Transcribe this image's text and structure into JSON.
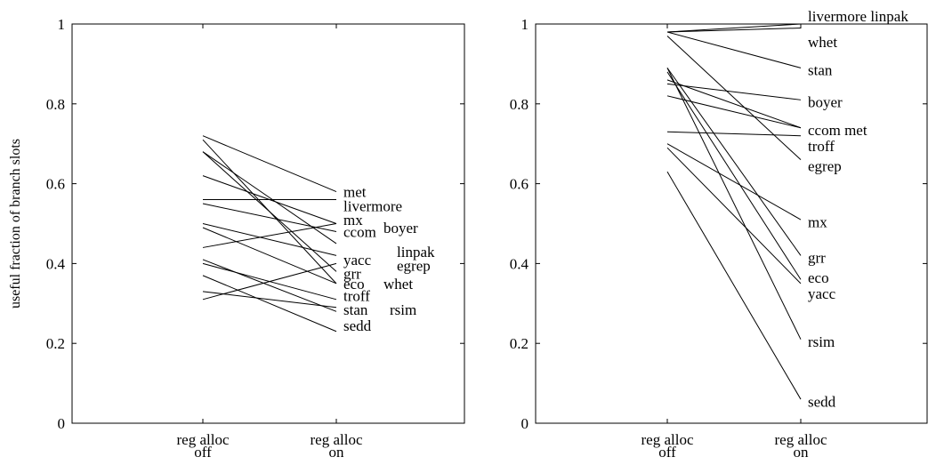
{
  "chart_data": [
    {
      "type": "line",
      "ylabel": "useful fraction of branch slots",
      "xlabel": "",
      "title": "",
      "categories": [
        "reg alloc off",
        "reg alloc on"
      ],
      "category_lines": [
        [
          "reg alloc",
          "off"
        ],
        [
          "reg alloc",
          "on"
        ]
      ],
      "ylim": [
        0,
        1
      ],
      "yticks": [
        "0",
        "0.2",
        "0.4",
        "0.6",
        "0.8",
        "1"
      ],
      "grid": false,
      "series": [
        {
          "name": "met",
          "values": [
            0.72,
            0.58
          ]
        },
        {
          "name": "livermore",
          "values": [
            0.56,
            0.56
          ]
        },
        {
          "name": "mx",
          "values": [
            0.62,
            0.5
          ]
        },
        {
          "name": "ccom",
          "values": [
            0.55,
            0.48
          ]
        },
        {
          "name": "boyer",
          "values": [
            0.44,
            0.5
          ]
        },
        {
          "name": "linpak",
          "values": [
            0.68,
            0.45
          ]
        },
        {
          "name": "yacc",
          "values": [
            0.5,
            0.42
          ]
        },
        {
          "name": "egrep",
          "values": [
            0.31,
            0.4
          ]
        },
        {
          "name": "grr",
          "values": [
            0.68,
            0.38
          ]
        },
        {
          "name": "eco",
          "values": [
            0.49,
            0.35
          ]
        },
        {
          "name": "whet",
          "values": [
            0.71,
            0.35
          ]
        },
        {
          "name": "troff",
          "values": [
            0.4,
            0.31
          ]
        },
        {
          "name": "rsim",
          "values": [
            0.33,
            0.29
          ]
        },
        {
          "name": "stan",
          "values": [
            0.41,
            0.28
          ]
        },
        {
          "name": "sedd",
          "values": [
            0.37,
            0.23
          ]
        }
      ],
      "label_values": {
        "met": 0.58,
        "livermore": 0.545,
        "mx": 0.51,
        "ccom": 0.48,
        "boyer": 0.49,
        "linpak": 0.43,
        "yacc": 0.41,
        "egrep": 0.395,
        "grr": 0.375,
        "eco": 0.35,
        "whet": 0.35,
        "troff": 0.32,
        "rsim": 0.285,
        "stan": 0.285,
        "sedd": 0.245
      }
    },
    {
      "type": "line",
      "ylabel": "",
      "xlabel": "",
      "title": "",
      "categories": [
        "reg alloc off",
        "reg alloc on"
      ],
      "category_lines": [
        [
          "reg alloc",
          "off"
        ],
        [
          "reg alloc",
          "on"
        ]
      ],
      "ylim": [
        0,
        1
      ],
      "yticks": [
        "0",
        "0.2",
        "0.4",
        "0.6",
        "0.8",
        "1"
      ],
      "grid": false,
      "series": [
        {
          "name": "livermore",
          "values": [
            0.98,
            1.0
          ]
        },
        {
          "name": "linpak",
          "values": [
            1.0,
            1.0
          ]
        },
        {
          "name": "whet",
          "values": [
            0.98,
            0.99
          ]
        },
        {
          "name": "stan",
          "values": [
            0.98,
            0.89
          ]
        },
        {
          "name": "boyer",
          "values": [
            0.85,
            0.81
          ]
        },
        {
          "name": "ccom",
          "values": [
            0.86,
            0.74
          ]
        },
        {
          "name": "met",
          "values": [
            0.82,
            0.74
          ]
        },
        {
          "name": "troff",
          "values": [
            0.73,
            0.72
          ]
        },
        {
          "name": "egrep",
          "values": [
            0.97,
            0.66
          ]
        },
        {
          "name": "mx",
          "values": [
            0.7,
            0.51
          ]
        },
        {
          "name": "grr",
          "values": [
            0.89,
            0.42
          ]
        },
        {
          "name": "eco",
          "values": [
            0.88,
            0.36
          ]
        },
        {
          "name": "yacc",
          "values": [
            0.69,
            0.35
          ]
        },
        {
          "name": "rsim",
          "values": [
            0.89,
            0.21
          ]
        },
        {
          "name": "sedd",
          "values": [
            0.63,
            0.06
          ]
        }
      ],
      "labels": [
        {
          "text": "livermore linpak",
          "value": 1.02
        },
        {
          "text": "whet",
          "value": 0.955
        },
        {
          "text": "stan",
          "value": 0.885
        },
        {
          "text": "boyer",
          "value": 0.805
        },
        {
          "text": "ccom met",
          "value": 0.735
        },
        {
          "text": "troff",
          "value": 0.695
        },
        {
          "text": "egrep",
          "value": 0.645
        },
        {
          "text": "mx",
          "value": 0.505
        },
        {
          "text": "grr",
          "value": 0.415
        },
        {
          "text": "eco",
          "value": 0.365
        },
        {
          "text": "yacc",
          "value": 0.325
        },
        {
          "text": "rsim",
          "value": 0.205
        },
        {
          "text": "sedd",
          "value": 0.055
        }
      ]
    }
  ]
}
